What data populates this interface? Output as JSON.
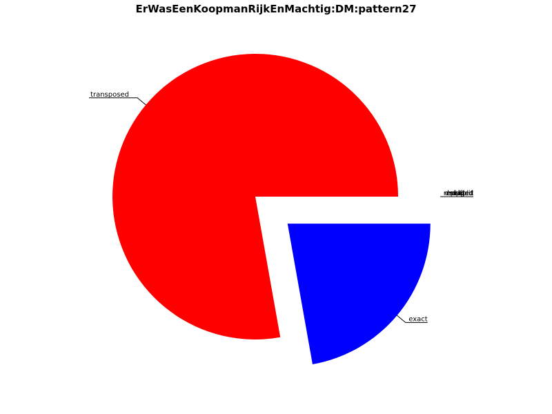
{
  "chart_data": {
    "type": "pie",
    "title": "ErWasEenKoopmanRijkEnMachtig:DM:pattern27",
    "slices": [
      {
        "label": "transposed",
        "value": 77.8,
        "color": "#ff0000",
        "explode": false
      },
      {
        "label": "exact",
        "value": 22.2,
        "color": "#0000ff",
        "explode": true
      },
      {
        "label": "replaced",
        "value": 0,
        "color": "#000000",
        "explode": true
      },
      {
        "label": "shifted",
        "value": 0,
        "color": "#000000",
        "explode": true
      },
      {
        "label": "dropped",
        "value": 0,
        "color": "#000000",
        "explode": true
      },
      {
        "label": "added",
        "value": 0,
        "color": "#000000",
        "explode": true
      },
      {
        "label": "split",
        "value": 0,
        "color": "#000000",
        "explode": true
      },
      {
        "label": "merged",
        "value": 0,
        "color": "#000000",
        "explode": true
      }
    ],
    "start_angle_deg": 0,
    "direction": "counterclockwise",
    "legend": "none",
    "grid": false
  }
}
